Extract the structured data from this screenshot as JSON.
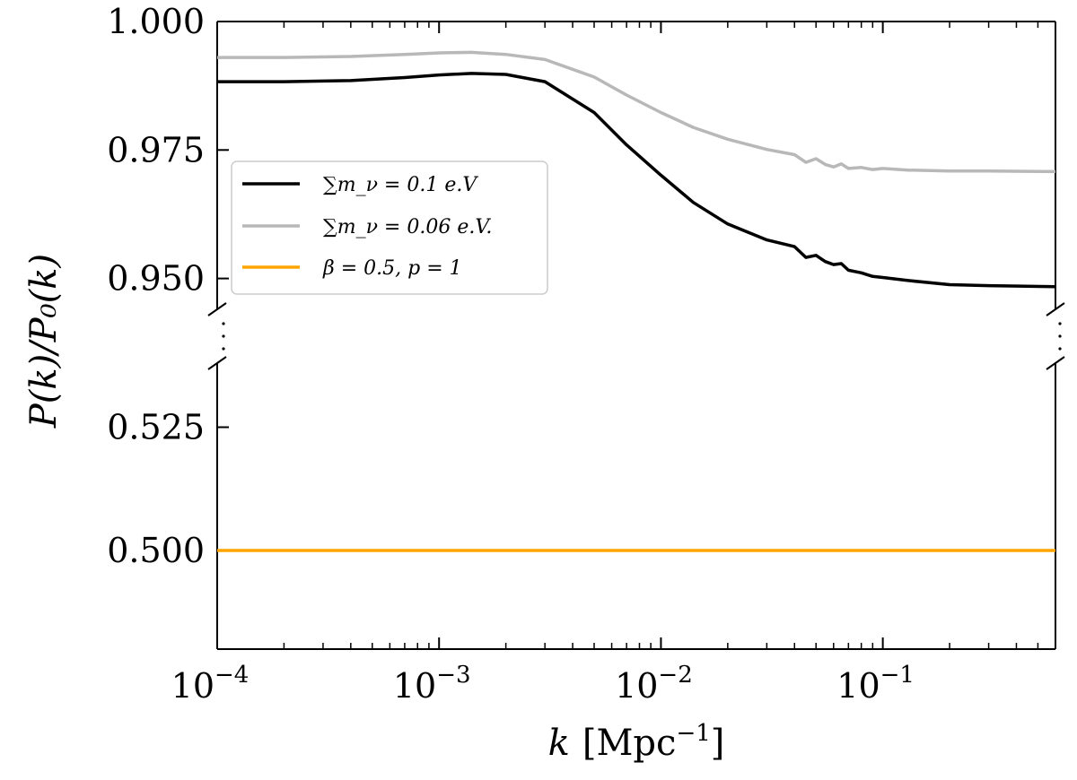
{
  "chart_data": {
    "type": "line",
    "xscale": "log",
    "xlim": [
      0.0001,
      0.6
    ],
    "ylim_upper": [
      0.944,
      1.0
    ],
    "ylim_lower": [
      0.48,
      0.538
    ],
    "xlabel_var": "k",
    "xlabel_unit": "[Mpc",
    "xlabel_unit_exp": "−1",
    "xlabel_unit_close": "]",
    "ylabel": "P(k)/P₀(k)",
    "xticks": [
      {
        "value": 0.0001,
        "base": "10",
        "exp": "−4"
      },
      {
        "value": 0.001,
        "base": "10",
        "exp": "−3"
      },
      {
        "value": 0.01,
        "base": "10",
        "exp": "−2"
      },
      {
        "value": 0.1,
        "base": "10",
        "exp": "−1"
      }
    ],
    "yticks_upper": [
      {
        "value": 1.0,
        "label": "1.000"
      },
      {
        "value": 0.975,
        "label": "0.975"
      },
      {
        "value": 0.95,
        "label": "0.950"
      }
    ],
    "yticks_lower": [
      {
        "value": 0.525,
        "label": "0.525"
      },
      {
        "value": 0.5,
        "label": "0.500"
      }
    ],
    "legend_position": "center-left",
    "series": [
      {
        "name": "∑m_ν = 0.1 e.V",
        "color": "#000000",
        "panel": "upper",
        "x": [
          0.0001,
          0.0002,
          0.0004,
          0.0007,
          0.001,
          0.0014,
          0.002,
          0.003,
          0.005,
          0.007,
          0.01,
          0.014,
          0.02,
          0.03,
          0.04,
          0.045,
          0.05,
          0.055,
          0.06,
          0.065,
          0.07,
          0.08,
          0.09,
          0.1,
          0.13,
          0.2,
          0.3,
          0.6
        ],
        "y": [
          0.9883,
          0.9883,
          0.9885,
          0.9891,
          0.9896,
          0.9899,
          0.9897,
          0.9883,
          0.9823,
          0.976,
          0.9701,
          0.9648,
          0.9606,
          0.9575,
          0.9562,
          0.9541,
          0.9545,
          0.9533,
          0.9527,
          0.9529,
          0.9516,
          0.9511,
          0.9504,
          0.9502,
          0.9496,
          0.9488,
          0.9486,
          0.9484
        ]
      },
      {
        "name": "∑m_ν = 0.06 e.V.",
        "color": "#b8b8b8",
        "panel": "upper",
        "x": [
          0.0001,
          0.0002,
          0.0004,
          0.0007,
          0.001,
          0.0014,
          0.002,
          0.003,
          0.005,
          0.007,
          0.01,
          0.014,
          0.02,
          0.03,
          0.04,
          0.045,
          0.05,
          0.055,
          0.06,
          0.065,
          0.07,
          0.08,
          0.09,
          0.1,
          0.13,
          0.2,
          0.3,
          0.6
        ],
        "y": [
          0.993,
          0.993,
          0.9932,
          0.9936,
          0.9939,
          0.994,
          0.9936,
          0.9926,
          0.9892,
          0.9857,
          0.9823,
          0.9794,
          0.9771,
          0.9751,
          0.9741,
          0.9726,
          0.9733,
          0.9722,
          0.9717,
          0.9723,
          0.9714,
          0.9716,
          0.9712,
          0.9714,
          0.9711,
          0.9709,
          0.9709,
          0.9708
        ]
      },
      {
        "name": "β = 0.5, p = 1",
        "color": "#ffa500",
        "panel": "lower",
        "x": [
          0.0001,
          0.6
        ],
        "y": [
          0.5,
          0.5
        ]
      }
    ]
  }
}
